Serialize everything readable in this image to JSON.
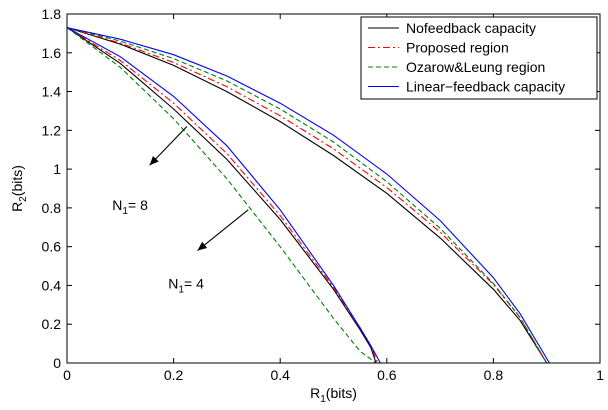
{
  "chart_data": {
    "type": "line",
    "xlim": [
      0,
      1
    ],
    "ylim": [
      0,
      1.8
    ],
    "x_ticks": [
      0,
      0.2,
      0.4,
      0.6,
      0.8,
      1
    ],
    "x_tick_labels": [
      "0",
      "0.2",
      "0.4",
      "0.6",
      "0.8",
      "1"
    ],
    "y_ticks": [
      0,
      0.2,
      0.4,
      0.6,
      0.8,
      1,
      1.2,
      1.4,
      1.6,
      1.8
    ],
    "y_tick_labels": [
      "0",
      "0.2",
      "0.4",
      "0.6",
      "0.8",
      "1",
      "1.2",
      "1.4",
      "1.6",
      "1.8"
    ],
    "xlabel": {
      "main": "R",
      "sub": "1",
      "rest": "(bits)"
    },
    "ylabel": {
      "main": "R",
      "sub": "2",
      "rest": "(bits)"
    },
    "grid": false,
    "legend_position": "top-right",
    "series": [
      {
        "name": "Nofeedback capacity",
        "color": "#000000",
        "dash": "solid",
        "group": "N1=4",
        "x": [
          0,
          0.1,
          0.2,
          0.3,
          0.4,
          0.5,
          0.55,
          0.57,
          0.58
        ],
        "y": [
          1.73,
          1.545,
          1.31,
          1.05,
          0.74,
          0.38,
          0.17,
          0.08,
          0
        ]
      },
      {
        "name": "Proposed region",
        "color": "#ff0000",
        "dash": "dashdot",
        "group": "N1=4",
        "x": [
          0,
          0.1,
          0.2,
          0.3,
          0.4,
          0.5,
          0.55,
          0.57,
          0.583
        ],
        "y": [
          1.73,
          1.56,
          1.34,
          1.08,
          0.76,
          0.39,
          0.18,
          0.09,
          0
        ]
      },
      {
        "name": "Ozarow&Leung region",
        "color": "#008000",
        "dash": "dashed",
        "group": "N1=4",
        "x": [
          0,
          0.1,
          0.2,
          0.3,
          0.4,
          0.5,
          0.55,
          0.58
        ],
        "y": [
          1.73,
          1.525,
          1.26,
          0.95,
          0.6,
          0.23,
          0.06,
          0
        ]
      },
      {
        "name": "Linear-feedback capacity",
        "color": "#0000ff",
        "dash": "solid",
        "group": "N1=4",
        "x": [
          0,
          0.1,
          0.2,
          0.3,
          0.4,
          0.5,
          0.55,
          0.57,
          0.588
        ],
        "y": [
          1.73,
          1.58,
          1.375,
          1.12,
          0.79,
          0.4,
          0.18,
          0.09,
          0
        ]
      },
      {
        "name": "Nofeedback capacity",
        "color": "#000000",
        "dash": "solid",
        "group": "N1=8",
        "x": [
          0,
          0.1,
          0.2,
          0.3,
          0.4,
          0.5,
          0.6,
          0.7,
          0.8,
          0.85,
          0.9
        ],
        "y": [
          1.73,
          1.645,
          1.535,
          1.4,
          1.245,
          1.07,
          0.875,
          0.645,
          0.38,
          0.22,
          0
        ]
      },
      {
        "name": "Proposed region",
        "color": "#ff0000",
        "dash": "dashdot",
        "group": "N1=8",
        "x": [
          0,
          0.1,
          0.2,
          0.3,
          0.4,
          0.5,
          0.6,
          0.7,
          0.8,
          0.85,
          0.9
        ],
        "y": [
          1.73,
          1.65,
          1.55,
          1.425,
          1.275,
          1.105,
          0.905,
          0.675,
          0.405,
          0.235,
          0
        ]
      },
      {
        "name": "Ozarow&Leung region",
        "color": "#008000",
        "dash": "dashed",
        "group": "N1=8",
        "x": [
          0,
          0.1,
          0.2,
          0.3,
          0.4,
          0.5,
          0.6,
          0.7,
          0.8,
          0.85,
          0.9
        ],
        "y": [
          1.73,
          1.66,
          1.57,
          1.455,
          1.31,
          1.14,
          0.935,
          0.695,
          0.41,
          0.235,
          0
        ]
      },
      {
        "name": "Linear-feedback capacity",
        "color": "#0000ff",
        "dash": "solid",
        "group": "N1=8",
        "x": [
          0,
          0.1,
          0.2,
          0.3,
          0.4,
          0.5,
          0.6,
          0.7,
          0.8,
          0.85,
          0.905
        ],
        "y": [
          1.73,
          1.67,
          1.59,
          1.48,
          1.34,
          1.175,
          0.975,
          0.735,
          0.44,
          0.255,
          0
        ]
      }
    ],
    "legend": [
      {
        "label": "Nofeedback capacity",
        "color": "#000000",
        "dash": "solid"
      },
      {
        "label": "Proposed region",
        "color": "#ff0000",
        "dash": "dashdot"
      },
      {
        "label": "Ozarow&Leung region",
        "color": "#008000",
        "dash": "dashed"
      },
      {
        "label": "Linear−feedback capacity",
        "color": "#0000ff",
        "dash": "solid"
      }
    ],
    "annotations": [
      {
        "main": "N",
        "sub": "1",
        "rest": "= 8",
        "text_at": [
          0.085,
          0.79
        ],
        "arrow_from": [
          0.225,
          1.22
        ],
        "arrow_to": [
          0.155,
          1.02
        ]
      },
      {
        "main": "N",
        "sub": "1",
        "rest": "= 4",
        "text_at": [
          0.19,
          0.385
        ],
        "arrow_from": [
          0.34,
          0.79
        ],
        "arrow_to": [
          0.245,
          0.58
        ]
      }
    ]
  }
}
